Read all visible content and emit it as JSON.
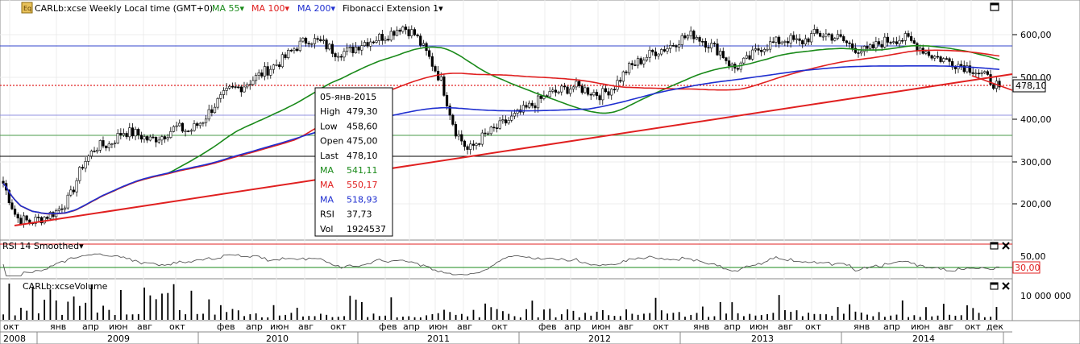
{
  "header": {
    "icon_name": "chart-settings-icon",
    "symbol": "CARLb:xcse",
    "period": "Weekly",
    "timezone": "Local time (GMT+0)",
    "ma_items": [
      {
        "label": "MA 55",
        "color": "#1a8a1a"
      },
      {
        "label": "MA 100",
        "color": "#e02020"
      },
      {
        "label": "MA 200",
        "color": "#1f2fd0"
      }
    ],
    "fib_label": "Fibonacci Extension 1"
  },
  "price_axis": {
    "ticks": [
      "600,00",
      "500,00",
      "400,00",
      "300,00",
      "200,00"
    ],
    "last_price": "478,10"
  },
  "tooltip": {
    "rows": [
      {
        "label": "05-янв-2015",
        "value": "",
        "color": "#000000"
      },
      {
        "label": "High",
        "value": "479,30",
        "color": "#000000"
      },
      {
        "label": "Low",
        "value": "458,60",
        "color": "#000000"
      },
      {
        "label": "Open",
        "value": "475,00",
        "color": "#000000"
      },
      {
        "label": "Last",
        "value": "478,10",
        "color": "#000000"
      },
      {
        "label": "MA",
        "value": "541,11",
        "color": "#1a8a1a"
      },
      {
        "label": "MA",
        "value": "550,17",
        "color": "#e02020"
      },
      {
        "label": "MA",
        "value": "518,93",
        "color": "#1f2fd0"
      },
      {
        "label": "RSI",
        "value": "37,73",
        "color": "#000000"
      },
      {
        "label": "Vol",
        "value": "1924537",
        "color": "#000000"
      }
    ]
  },
  "rsi_panel": {
    "title": "RSI 14 Smoothed",
    "ticks": [
      "50,00"
    ],
    "badge": "30,00"
  },
  "volume_panel": {
    "title": "CARLb:xcseVolume",
    "ticks": [
      "10 000 000"
    ]
  },
  "time_axis": {
    "months": [
      "окт",
      "янв",
      "апр",
      "июн",
      "авг",
      "окт",
      "фев",
      "апр",
      "июн",
      "авг",
      "окт",
      "фев",
      "апр",
      "июн",
      "авг",
      "окт",
      "фев",
      "апр",
      "июн",
      "авг",
      "окт",
      "янв",
      "апр",
      "июн",
      "авг",
      "окт",
      "янв",
      "апр",
      "июн",
      "авг",
      "окт",
      "дек"
    ],
    "years": [
      "2008",
      "2009",
      "2010",
      "2011",
      "2012",
      "2013",
      "2014"
    ]
  },
  "chart_data": {
    "type": "candlestick",
    "symbol": "CARLb:xcse",
    "period": "Weekly",
    "price_range": [
      125,
      680
    ],
    "price": {
      "x": [
        "2008-10",
        "2008-11",
        "2008-12",
        "2009-01",
        "2009-02",
        "2009-03",
        "2009-04",
        "2009-05",
        "2009-06",
        "2009-07",
        "2009-08",
        "2009-09",
        "2009-10",
        "2009-11",
        "2009-12",
        "2010-01",
        "2010-02",
        "2010-03",
        "2010-04",
        "2010-05",
        "2010-06",
        "2010-07",
        "2010-08",
        "2010-09",
        "2010-10",
        "2010-11",
        "2010-12",
        "2011-01",
        "2011-02",
        "2011-03",
        "2011-04",
        "2011-05",
        "2011-06",
        "2011-07",
        "2011-08",
        "2011-09",
        "2011-10",
        "2011-11",
        "2011-12",
        "2012-01",
        "2012-02",
        "2012-03",
        "2012-04",
        "2012-05",
        "2012-06",
        "2012-07",
        "2012-08",
        "2012-09",
        "2012-10",
        "2012-11",
        "2012-12",
        "2013-01",
        "2013-02",
        "2013-03",
        "2013-04",
        "2013-05",
        "2013-06",
        "2013-07",
        "2013-08",
        "2013-09",
        "2013-10",
        "2013-11",
        "2013-12",
        "2014-01",
        "2014-02",
        "2014-03",
        "2014-04",
        "2014-05",
        "2014-06",
        "2014-07",
        "2014-08",
        "2014-09",
        "2014-10",
        "2014-11",
        "2014-12",
        "2015-01"
      ],
      "close": [
        255,
        175,
        165,
        175,
        190,
        220,
        300,
        340,
        345,
        375,
        370,
        355,
        365,
        385,
        375,
        400,
        440,
        470,
        480,
        500,
        520,
        540,
        570,
        590,
        580,
        560,
        560,
        580,
        590,
        600,
        620,
        600,
        550,
        490,
        380,
        330,
        360,
        380,
        400,
        420,
        440,
        460,
        470,
        480,
        470,
        460,
        480,
        520,
        540,
        560,
        570,
        590,
        600,
        580,
        560,
        520,
        540,
        570,
        580,
        590,
        580,
        600,
        600,
        590,
        570,
        560,
        580,
        590,
        590,
        570,
        550,
        540,
        530,
        520,
        500,
        478.1
      ]
    },
    "ma_55": {
      "last": 541.11,
      "color": "#1a8a1a"
    },
    "ma_100": {
      "last": 550.17,
      "color": "#e02020"
    },
    "ma_200": {
      "last": 518.93,
      "color": "#1f2fd0"
    },
    "rsi": {
      "period": 14,
      "last": 37.73,
      "levels": [
        30,
        70
      ]
    },
    "volume": {
      "last": 1924537
    },
    "selected_bar": {
      "date": "05-янв-2015",
      "high": 479.3,
      "low": 458.6,
      "open": 475.0,
      "last": 478.1
    }
  }
}
